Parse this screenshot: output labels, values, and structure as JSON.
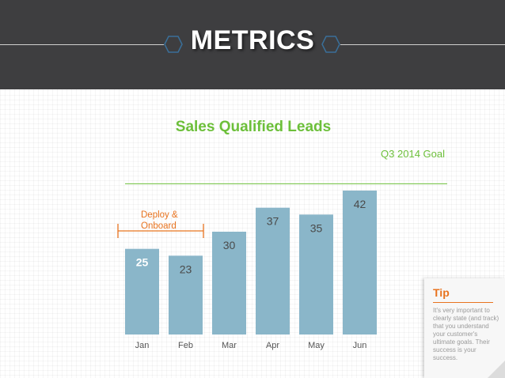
{
  "header": {
    "title": "METRICS"
  },
  "chart_data": {
    "type": "bar",
    "title": "Sales Qualified Leads",
    "categories": [
      "Jan",
      "Feb",
      "Mar",
      "Apr",
      "May",
      "Jun"
    ],
    "values": [
      25,
      23,
      30,
      37,
      35,
      42
    ],
    "ylim": [
      0,
      46
    ],
    "grid": false,
    "goal_line": {
      "label": "Q3 2014 Goal",
      "value": 44
    },
    "annotation": {
      "label": "Deploy & Onboard",
      "span": [
        "Jan",
        "Feb"
      ]
    },
    "colors": {
      "bar": "#8ab6c9",
      "goal": "#6cbf3a",
      "annotation": "#e8731f"
    }
  },
  "tip": {
    "title": "Tip",
    "text": "It's very important to clearly state (and track) that you understand your customer's ultimate goals. Their success is your success."
  }
}
